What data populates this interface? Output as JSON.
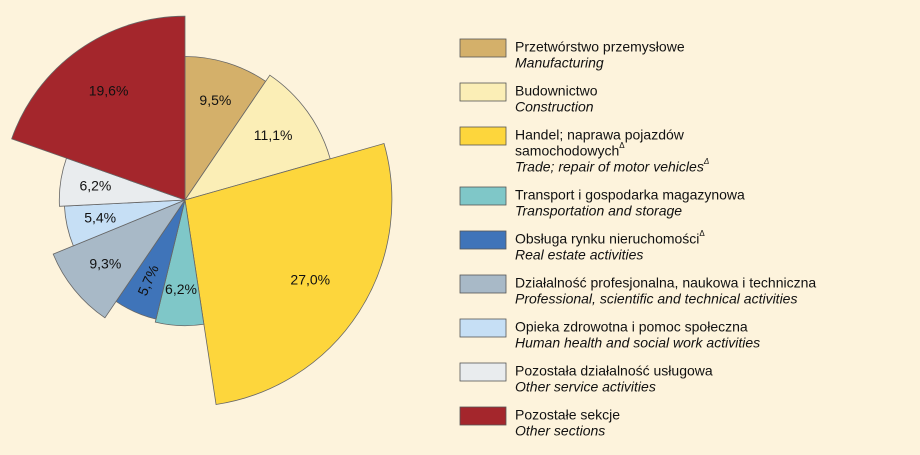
{
  "chart_data": {
    "type": "polar_pie",
    "categories": [
      [
        "Przetwórstwo przemysłowe"
      ],
      [
        "Budownictwo"
      ],
      [
        "Handel; naprawa pojazdów",
        "samochodowych"
      ],
      [
        "Transport  i gospodarka magazynowa"
      ],
      [
        "Obsługa rynku nieruchomości"
      ],
      [
        "Działalność profesjonalna, naukowa i techniczna"
      ],
      [
        "Opieka zdrowotna i pomoc społeczna"
      ],
      [
        "Pozostała działalność usługowa"
      ],
      [
        "Pozostałe sekcje"
      ]
    ],
    "categories_en": [
      "Manufacturing",
      "Construction",
      "Trade; repair of motor vehicles",
      "Transportation and storage",
      "Real estate activities",
      "Professional, scientific and technical activities",
      "Human health and social work activities",
      "Other service activities",
      "Other sections"
    ],
    "notes": {
      "2": "Δ",
      "4": "Δ"
    },
    "notes_en": {
      "2": "Δ"
    },
    "values": [
      9.5,
      11.1,
      27.0,
      6.2,
      5.7,
      9.3,
      5.4,
      6.2,
      19.6
    ],
    "value_labels": [
      "9,5%",
      "11,1%",
      "27,0%",
      "6,2%",
      "5,7%",
      "9,3%",
      "5,4%",
      "6,2%",
      "19,6%"
    ],
    "colors": [
      "#d4b06a",
      "#fbeeb6",
      "#fdd63c",
      "#7fc7c8",
      "#3f74b9",
      "#a8b9c7",
      "#c6dff5",
      "#e9ecee",
      "#a4262c"
    ]
  }
}
